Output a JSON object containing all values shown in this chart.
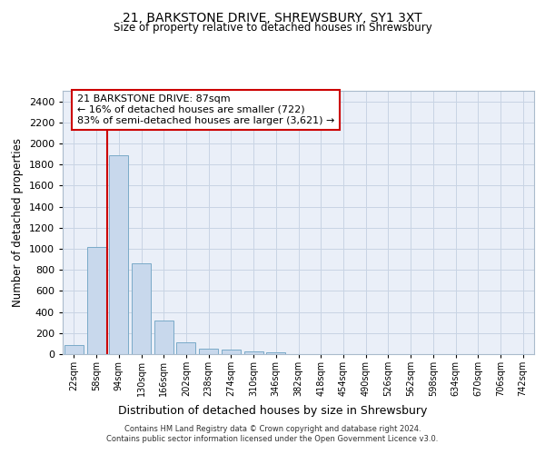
{
  "title": "21, BARKSTONE DRIVE, SHREWSBURY, SY1 3XT",
  "subtitle": "Size of property relative to detached houses in Shrewsbury",
  "xlabel": "Distribution of detached houses by size in Shrewsbury",
  "ylabel": "Number of detached properties",
  "categories": [
    "22sqm",
    "58sqm",
    "94sqm",
    "130sqm",
    "166sqm",
    "202sqm",
    "238sqm",
    "274sqm",
    "310sqm",
    "346sqm",
    "382sqm",
    "418sqm",
    "454sqm",
    "490sqm",
    "526sqm",
    "562sqm",
    "598sqm",
    "634sqm",
    "670sqm",
    "706sqm",
    "742sqm"
  ],
  "values": [
    85,
    1020,
    1890,
    860,
    320,
    115,
    50,
    40,
    30,
    20,
    0,
    0,
    0,
    0,
    0,
    0,
    0,
    0,
    0,
    0,
    0
  ],
  "bar_color": "#c8d8ec",
  "bar_edge_color": "#7aaac8",
  "property_line_x": 1.5,
  "property_line_color": "#cc0000",
  "annotation_text": "21 BARKSTONE DRIVE: 87sqm\n← 16% of detached houses are smaller (722)\n83% of semi-detached houses are larger (3,621) →",
  "annotation_box_color": "#ffffff",
  "annotation_box_edge_color": "#cc0000",
  "ylim": [
    0,
    2500
  ],
  "yticks": [
    0,
    200,
    400,
    600,
    800,
    1000,
    1200,
    1400,
    1600,
    1800,
    2000,
    2200,
    2400
  ],
  "grid_color": "#c8d4e4",
  "bg_color": "#eaeff8",
  "footer_line1": "Contains HM Land Registry data © Crown copyright and database right 2024.",
  "footer_line2": "Contains public sector information licensed under the Open Government Licence v3.0."
}
